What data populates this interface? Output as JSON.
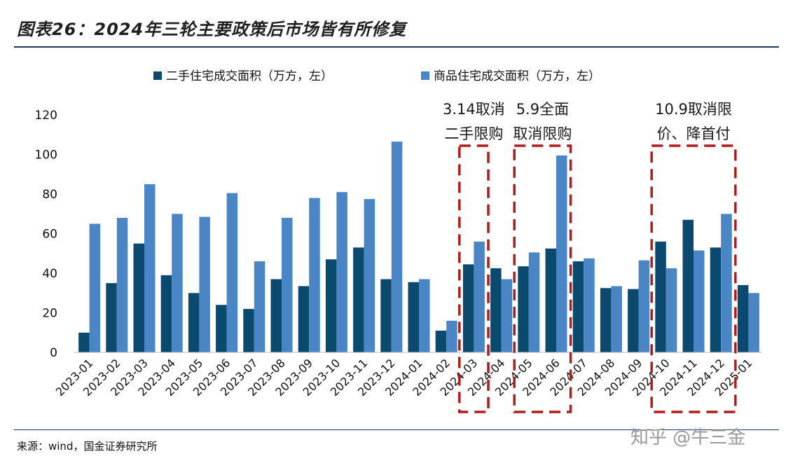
{
  "title": "图表26：2024年三轮主要政策后市场皆有所修复",
  "source": "来源：wind，国金证券研究所",
  "watermark": "知乎 @牛三金",
  "colors": {
    "series1": "#0b4a6f",
    "series2": "#4a86c5",
    "annotation": "#b01c1c",
    "rule": "#1e3a5f"
  },
  "chart_data": {
    "type": "bar",
    "categories": [
      "2023-01",
      "2023-02",
      "2023-03",
      "2023-04",
      "2023-05",
      "2023-06",
      "2023-07",
      "2023-08",
      "2023-09",
      "2023-10",
      "2023-11",
      "2023-12",
      "2024-01",
      "2024-02",
      "2024-03",
      "2024-04",
      "2024-05",
      "2024-06",
      "2024-07",
      "2024-08",
      "2024-09",
      "2024-10",
      "2024-11",
      "2024-12",
      "2025-01"
    ],
    "series": [
      {
        "name": "二手住宅成交面积（万方，左）",
        "values": [
          10,
          35,
          55,
          39,
          30,
          24,
          22,
          37,
          33.5,
          47,
          53,
          37,
          35.5,
          11,
          44.5,
          42.5,
          43.5,
          52.5,
          46,
          32.5,
          32,
          56,
          67,
          53,
          34
        ]
      },
      {
        "name": "商品住宅成交面积（万方，左）",
        "values": [
          65,
          68,
          85,
          70,
          68.5,
          80.5,
          46,
          68,
          78,
          81,
          77.5,
          106.5,
          37,
          16,
          56,
          37,
          50.5,
          99.5,
          47.5,
          33.5,
          46.5,
          42.5,
          51.5,
          70,
          30
        ]
      }
    ],
    "ylim": [
      0,
      120
    ],
    "yticks": [
      "0",
      "20",
      "40",
      "60",
      "80",
      "100",
      "120"
    ],
    "xlabel": "",
    "ylabel": "",
    "legend_position": "top-center",
    "grid": false,
    "annotations": [
      {
        "lines": [
          "3.14取消",
          "二手限购"
        ],
        "start": "2024-03",
        "end": "2024-03"
      },
      {
        "lines": [
          "5.9全面",
          "取消限购"
        ],
        "start": "2024-05",
        "end": "2024-06"
      },
      {
        "lines": [
          "10.9取消限",
          "价、降首付"
        ],
        "start": "2024-10",
        "end": "2024-12"
      }
    ]
  }
}
